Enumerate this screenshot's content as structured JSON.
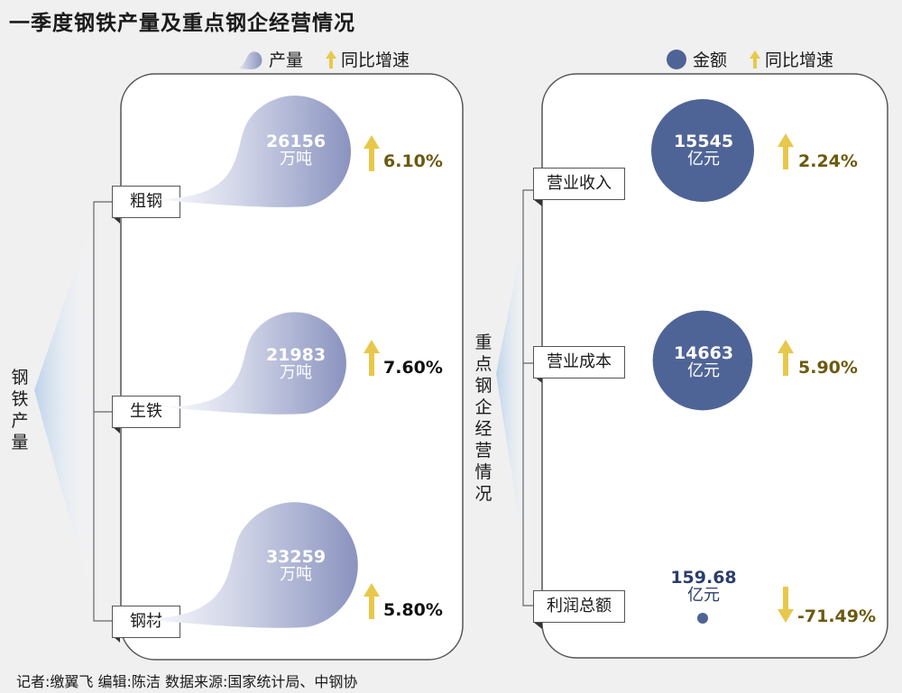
{
  "title": "一季度钢铁产量及重点钢企经营情况",
  "footer": "记者:缴翼飞   编辑:陈洁    数据来源:国家统计局、中钢协",
  "colors": {
    "production_blob": "#8a93bf",
    "revenue_circle": "#4f6496",
    "arrow_up": "#e8c84a",
    "arrow_down": "#e8c84a",
    "pct_olive": "#6b5a10",
    "pct_black": "#111111"
  },
  "chart_data": [
    {
      "type": "bar",
      "group_label": "钢铁产量",
      "legend": {
        "value_label": "产量",
        "growth_label": "同比增速"
      },
      "categories": [
        "粗钢",
        "生铁",
        "钢材"
      ],
      "series": [
        {
          "name": "产量",
          "values": [
            26156,
            21983,
            33259
          ],
          "unit": "万吨"
        },
        {
          "name": "同比增速",
          "values": [
            "6.10%",
            "7.60%",
            "5.80%"
          ]
        }
      ]
    },
    {
      "type": "bar",
      "group_label": "重点钢企经营情况",
      "legend": {
        "value_label": "金额",
        "growth_label": "同比增速"
      },
      "categories": [
        "营业收入",
        "营业成本",
        "利润总额"
      ],
      "series": [
        {
          "name": "金额",
          "values": [
            15545,
            14663,
            159.68
          ],
          "unit": "亿元"
        },
        {
          "name": "同比增速",
          "values": [
            "2.24%",
            "5.90%",
            "-71.49%"
          ],
          "direction": [
            "up",
            "up",
            "down"
          ]
        }
      ]
    }
  ]
}
